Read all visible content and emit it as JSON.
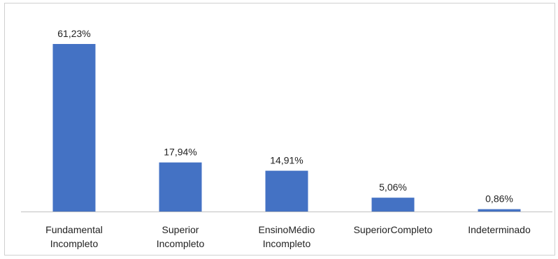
{
  "chart_data": {
    "type": "bar",
    "categories": [
      [
        "Fundamental",
        "Incompleto"
      ],
      [
        "Superior",
        "Incompleto"
      ],
      [
        "EnsinoMédio",
        "Incompleto"
      ],
      [
        "SuperiorCompleto"
      ],
      [
        "Indeterminado"
      ]
    ],
    "values": [
      61.23,
      17.94,
      14.91,
      5.06,
      0.86
    ],
    "data_labels": [
      "61,23%",
      "17,94%",
      "14,91%",
      "5,06%",
      "0,86%"
    ],
    "title": "",
    "xlabel": "",
    "ylabel": "",
    "ylim": [
      0,
      61.23
    ],
    "grid": false,
    "legend": "none",
    "bar_color": "#4472C4",
    "axis_color": "#bfbfbf"
  }
}
